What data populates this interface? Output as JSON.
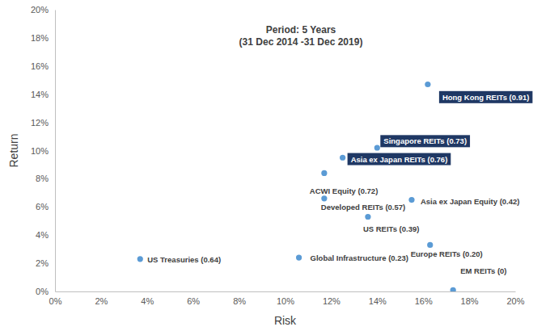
{
  "chart_data": {
    "type": "scatter",
    "title": "Period: 5 Years",
    "subtitle": "(31 Dec 2014 -31 Dec 2019)",
    "x_label": "Risk",
    "y_label": "Return",
    "labels": [
      "US Treasuries (0.64)",
      "Global Infrastructure (0.23)",
      "ACWI Equity (0.72)",
      "Developed REITs (0.57)",
      "Asia ex Japan REITs (0.76)",
      "Singapore REITs (0.73)",
      "US REITs (0.39)",
      "Asia ex Japan Equity (0.42)",
      "Hong Kong REITs (0.91)",
      "Europe REITs (0.20)",
      "EM REITs (0)"
    ],
    "x": [
      3.7,
      10.6,
      11.7,
      11.7,
      12.5,
      14.0,
      13.6,
      15.5,
      16.2,
      16.3,
      17.3
    ],
    "values": [
      2.3,
      2.4,
      8.4,
      6.6,
      9.5,
      10.2,
      5.3,
      6.5,
      14.7,
      3.3,
      0.1
    ],
    "color": "#5b9bd5",
    "marker": "circle",
    "grid": false,
    "xlim": [
      0,
      20
    ],
    "ylim": [
      0,
      20
    ],
    "xticks": [
      {
        "value": 0,
        "label": "0%"
      },
      {
        "value": 2,
        "label": "2%"
      },
      {
        "value": 4,
        "label": "4%"
      },
      {
        "value": 6,
        "label": "6%"
      },
      {
        "value": 8,
        "label": "8%"
      },
      {
        "value": 10,
        "label": "10%"
      },
      {
        "value": 12,
        "label": "12%"
      },
      {
        "value": 14,
        "label": "14%"
      },
      {
        "value": 16,
        "label": "16%"
      },
      {
        "value": 18,
        "label": "18%"
      },
      {
        "value": 20,
        "label": "20%"
      }
    ],
    "yticks": [
      {
        "value": 0,
        "label": "0%"
      },
      {
        "value": 2,
        "label": "2%"
      },
      {
        "value": 4,
        "label": "4%"
      },
      {
        "value": 6,
        "label": "6%"
      },
      {
        "value": 8,
        "label": "8%"
      },
      {
        "value": 10,
        "label": "10%"
      },
      {
        "value": 12,
        "label": "12%"
      },
      {
        "value": 14,
        "label": "14%"
      },
      {
        "value": 16,
        "label": "16%"
      },
      {
        "value": 18,
        "label": "18%"
      },
      {
        "value": 20,
        "label": "20%"
      }
    ]
  }
}
